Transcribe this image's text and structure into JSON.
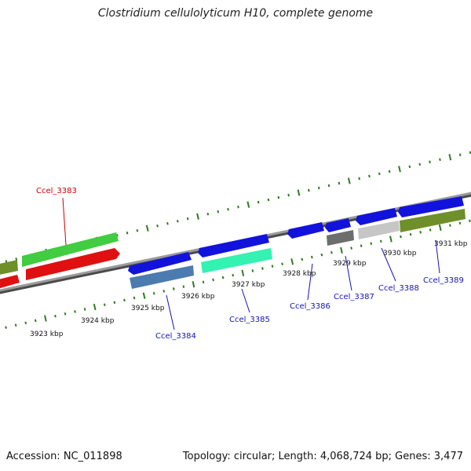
{
  "title": "Clostridium cellulolyticum H10, complete genome",
  "footer": {
    "accession": "Accession: NC_011898",
    "summary": "Topology: circular; Length: 4,068,724 bp; Genes: 3,477"
  },
  "colors": {
    "axis": "#8a8a8a",
    "tick": "#2d7d1e",
    "forward_blue": "#1212dd",
    "forward_green": "#41cc41",
    "reverse_red": "#e01010",
    "olive": "#6f8f2a",
    "steel": "#4c7bb0",
    "aqua": "#33f2b2",
    "dark_gray": "#6d6d6d",
    "light_gray": "#c6c6c6",
    "label_red": "#cc0000",
    "label_blue": "#1414b4"
  },
  "scale_labels": [
    "3923 kbp",
    "3924 kbp",
    "3925 kbp",
    "3926 kbp",
    "3927 kbp",
    "3928 kbp",
    "3929 kbp",
    "3930 kbp",
    "3931 kbp"
  ],
  "gene_labels": {
    "g3383": "Ccel_3383",
    "g3384": "Ccel_3384",
    "g3385": "Ccel_3385",
    "g3386": "Ccel_3386",
    "g3387": "Ccel_3387",
    "g3388": "Ccel_3388",
    "g3389": "Ccel_3389"
  }
}
